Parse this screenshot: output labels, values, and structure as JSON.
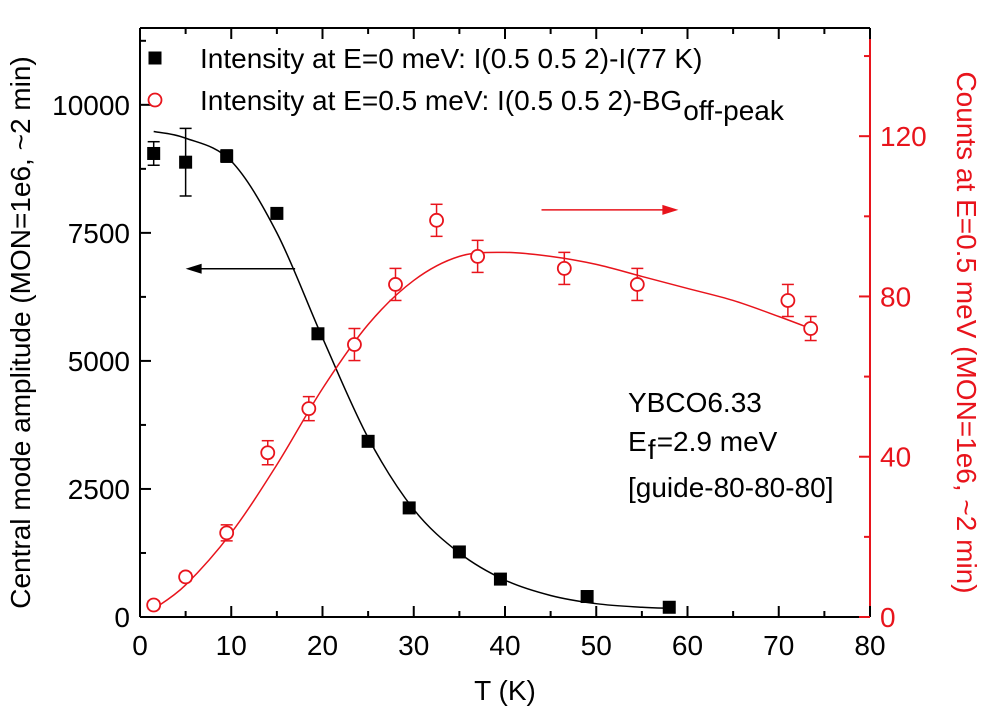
{
  "chart_data": {
    "type": "scatter",
    "xlabel": "T (K)",
    "ylabel_left": "Central mode amplitude (MON=1e6, ~2 min)",
    "ylabel_right": "Counts at E=0.5 meV (MON=1e6, ~2 min)",
    "xlim": [
      0,
      80
    ],
    "ylim_left": [
      0,
      11500
    ],
    "ylim_right": [
      0,
      147
    ],
    "x_ticks": [
      0,
      10,
      20,
      30,
      40,
      50,
      60,
      70,
      80
    ],
    "y_ticks_left": [
      0,
      2500,
      5000,
      7500,
      10000
    ],
    "y_ticks_right": [
      0,
      40,
      80,
      120
    ],
    "grid": false,
    "legend_position": "top-left",
    "colors": {
      "left": "#000000",
      "right": "#e8141c"
    },
    "series": [
      {
        "name": "Intensity at E=0 meV: I(0.5 0.5 2)-I(77 K)",
        "axis": "left",
        "marker": "filled-square",
        "x": [
          1.5,
          5,
          9.5,
          15,
          19.5,
          25,
          29.5,
          35,
          39.5,
          49,
          58
        ],
        "y": [
          9050,
          8880,
          9000,
          7880,
          5530,
          3430,
          2130,
          1270,
          740,
          400,
          190
        ],
        "err": [
          230,
          660,
          120,
          100,
          100,
          60,
          40,
          40,
          30,
          30,
          20
        ]
      },
      {
        "name": "Intensity at E=0.5 meV: I(0.5 0.5 2)-BG",
        "axis": "right",
        "marker": "open-circle",
        "x": [
          1.5,
          5,
          9.5,
          14,
          18.5,
          23.5,
          28,
          32.5,
          37,
          46.5,
          54.5,
          71,
          73.5
        ],
        "y": [
          3,
          10,
          21,
          41,
          52,
          68,
          83,
          99,
          90,
          87,
          83,
          79,
          72
        ],
        "err": [
          1,
          1,
          2,
          3,
          3,
          4,
          4,
          4,
          4,
          4,
          4,
          4,
          3
        ]
      }
    ],
    "fit_curves": [
      {
        "series": 0,
        "axis": "left",
        "x": [
          1.5,
          5,
          10,
          15,
          20,
          25,
          30,
          35,
          40,
          45,
          50,
          55,
          58
        ],
        "y": [
          9480,
          9350,
          8900,
          7500,
          5450,
          3500,
          2100,
          1250,
          720,
          420,
          260,
          190,
          170
        ]
      },
      {
        "series": 1,
        "axis": "right",
        "x": [
          1.5,
          5,
          10,
          15,
          20,
          25,
          30,
          35,
          40,
          45,
          50,
          55,
          60,
          65,
          70,
          73.5
        ],
        "y": [
          2,
          8,
          21,
          38,
          57,
          73,
          84,
          90,
          91,
          90,
          88,
          85,
          82,
          79,
          75,
          72
        ]
      }
    ],
    "legend": [
      {
        "marker": "filled-square",
        "color": "#000000",
        "text": "Intensity at E=0 meV: I(0.5 0.5 2)-I(77 K)"
      },
      {
        "marker": "open-circle",
        "color": "#e8141c",
        "text": "Intensity at E=0.5 meV:  I(0.5 0.5 2)-BG",
        "subscript": "off-peak"
      }
    ],
    "annotations": [
      {
        "text": "YBCO6.33"
      },
      {
        "text": "E",
        "subscript": "f",
        "suffix": "=2.9 meV"
      },
      {
        "text": "[guide-80-80-80]"
      }
    ],
    "arrows": [
      {
        "direction": "left",
        "color": "#000000",
        "x_from": 17,
        "x_to": 5,
        "y_left": 6800
      },
      {
        "direction": "right",
        "color": "#e8141c",
        "x_from": 44,
        "x_to": 59,
        "y_left": 7950
      }
    ]
  }
}
